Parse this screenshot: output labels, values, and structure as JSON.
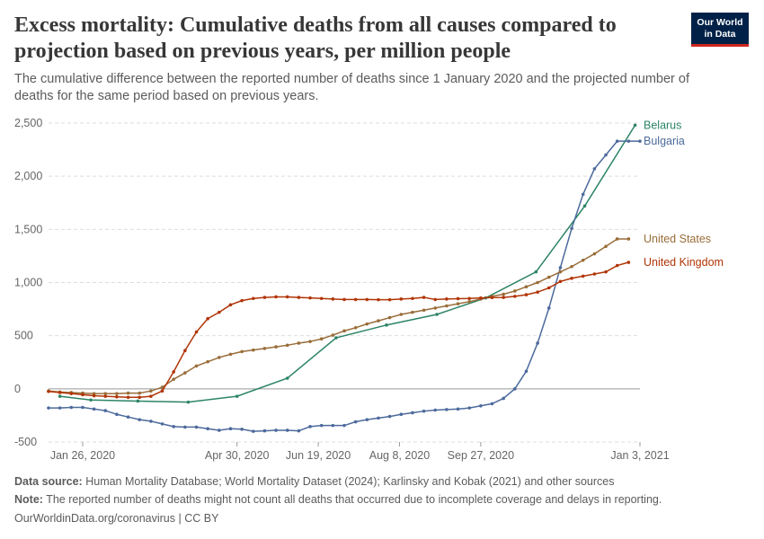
{
  "header": {
    "title": "Excess mortality: Cumulative deaths from all causes compared to projection based on previous years, per million people",
    "subtitle": "The cumulative difference between the reported number of deaths since 1 January 2020 and the projected number of deaths for the same period based on previous years.",
    "logo_line1": "Our World",
    "logo_line2": "in Data"
  },
  "footer": {
    "source_label": "Data source:",
    "source_text": "Human Mortality Database; World Mortality Dataset (2024); Karlinsky and Kobak (2021) and other sources",
    "note_label": "Note:",
    "note_text": "The reported number of deaths might not count all deaths that occurred due to incomplete coverage and delays in reporting.",
    "credit": "OurWorldinData.org/coronavirus | CC BY"
  },
  "colors": {
    "belarus": "#2c8465",
    "bulgaria": "#4c6a9c",
    "united_states": "#996d39",
    "united_kingdom": "#b13507",
    "grid": "#dddddd",
    "axis_text": "#666666"
  },
  "chart_data": {
    "type": "line",
    "xlabel": "",
    "ylabel": "",
    "x_range": [
      "2020-01-05",
      "2021-01-03"
    ],
    "ylim": [
      -500,
      2500
    ],
    "y_ticks": [
      -500,
      0,
      500,
      1000,
      1500,
      2000,
      2500
    ],
    "y_tick_labels": [
      "-500",
      "0",
      "500",
      "1,000",
      "1,500",
      "2,000",
      "2,500"
    ],
    "x_ticks": [
      "2020-01-26",
      "2020-04-30",
      "2020-06-19",
      "2020-08-08",
      "2020-09-27",
      "2021-01-03"
    ],
    "x_tick_labels": [
      "Jan 26, 2020",
      "Apr 30, 2020",
      "Jun 19, 2020",
      "Aug 8, 2020",
      "Sep 27, 2020",
      "Jan 3, 2021"
    ],
    "grid": "horizontal dashed",
    "legend": "labels at line ends (right)",
    "series": [
      {
        "name": "Belarus",
        "color": "#2c8465",
        "x": [
          "2020-01-12",
          "2020-01-31",
          "2020-02-29",
          "2020-03-31",
          "2020-04-30",
          "2020-05-31",
          "2020-06-30",
          "2020-07-31",
          "2020-08-31",
          "2020-09-30",
          "2020-10-31",
          "2020-11-30",
          "2020-12-31"
        ],
        "y": [
          -70,
          -105,
          -115,
          -125,
          -70,
          100,
          480,
          600,
          700,
          855,
          1100,
          1720,
          2480
        ]
      },
      {
        "name": "Bulgaria",
        "color": "#4c6a9c",
        "x": [
          "2020-01-05",
          "2020-01-12",
          "2020-01-19",
          "2020-01-26",
          "2020-02-02",
          "2020-02-09",
          "2020-02-16",
          "2020-02-23",
          "2020-03-01",
          "2020-03-08",
          "2020-03-15",
          "2020-03-22",
          "2020-03-29",
          "2020-04-05",
          "2020-04-12",
          "2020-04-19",
          "2020-04-26",
          "2020-05-03",
          "2020-05-10",
          "2020-05-17",
          "2020-05-24",
          "2020-05-31",
          "2020-06-07",
          "2020-06-14",
          "2020-06-21",
          "2020-06-28",
          "2020-07-05",
          "2020-07-12",
          "2020-07-19",
          "2020-07-26",
          "2020-08-02",
          "2020-08-09",
          "2020-08-16",
          "2020-08-23",
          "2020-08-30",
          "2020-09-06",
          "2020-09-13",
          "2020-09-20",
          "2020-09-27",
          "2020-10-04",
          "2020-10-11",
          "2020-10-18",
          "2020-10-25",
          "2020-11-01",
          "2020-11-08",
          "2020-11-15",
          "2020-11-22",
          "2020-11-29",
          "2020-12-06",
          "2020-12-13",
          "2020-12-20",
          "2020-12-27",
          "2021-01-03"
        ],
        "y": [
          -180,
          -180,
          -175,
          -175,
          -190,
          -205,
          -240,
          -265,
          -290,
          -305,
          -330,
          -355,
          -360,
          -360,
          -375,
          -390,
          -375,
          -380,
          -400,
          -395,
          -390,
          -390,
          -395,
          -355,
          -345,
          -345,
          -345,
          -310,
          -290,
          -275,
          -260,
          -240,
          -225,
          -210,
          -200,
          -195,
          -190,
          -180,
          -160,
          -140,
          -90,
          0,
          165,
          430,
          760,
          1140,
          1510,
          1830,
          2070,
          2200,
          2330,
          2330,
          2330
        ]
      },
      {
        "name": "United States",
        "color": "#996d39",
        "x": [
          "2020-01-05",
          "2020-01-12",
          "2020-01-19",
          "2020-01-26",
          "2020-02-02",
          "2020-02-09",
          "2020-02-16",
          "2020-02-23",
          "2020-03-01",
          "2020-03-08",
          "2020-03-15",
          "2020-03-22",
          "2020-03-29",
          "2020-04-05",
          "2020-04-12",
          "2020-04-19",
          "2020-04-26",
          "2020-05-03",
          "2020-05-10",
          "2020-05-17",
          "2020-05-24",
          "2020-05-31",
          "2020-06-07",
          "2020-06-14",
          "2020-06-21",
          "2020-06-28",
          "2020-07-05",
          "2020-07-12",
          "2020-07-19",
          "2020-07-26",
          "2020-08-02",
          "2020-08-09",
          "2020-08-16",
          "2020-08-23",
          "2020-08-30",
          "2020-09-06",
          "2020-09-13",
          "2020-09-20",
          "2020-09-27",
          "2020-10-04",
          "2020-10-11",
          "2020-10-18",
          "2020-10-25",
          "2020-11-01",
          "2020-11-08",
          "2020-11-15",
          "2020-11-22",
          "2020-11-29",
          "2020-12-06",
          "2020-12-13",
          "2020-12-20",
          "2020-12-27"
        ],
        "y": [
          -20,
          -30,
          -35,
          -40,
          -45,
          -45,
          -45,
          -40,
          -40,
          -20,
          15,
          90,
          150,
          215,
          255,
          295,
          325,
          350,
          365,
          380,
          395,
          410,
          430,
          445,
          470,
          505,
          545,
          575,
          610,
          640,
          670,
          700,
          720,
          740,
          760,
          780,
          800,
          820,
          845,
          870,
          890,
          920,
          960,
          1000,
          1050,
          1100,
          1150,
          1210,
          1270,
          1340,
          1410,
          1410
        ]
      },
      {
        "name": "United Kingdom",
        "color": "#b13507",
        "x": [
          "2020-01-05",
          "2020-01-12",
          "2020-01-19",
          "2020-01-26",
          "2020-02-02",
          "2020-02-09",
          "2020-02-16",
          "2020-02-23",
          "2020-03-01",
          "2020-03-08",
          "2020-03-15",
          "2020-03-22",
          "2020-03-29",
          "2020-04-05",
          "2020-04-12",
          "2020-04-19",
          "2020-04-26",
          "2020-05-03",
          "2020-05-10",
          "2020-05-17",
          "2020-05-24",
          "2020-05-31",
          "2020-06-07",
          "2020-06-14",
          "2020-06-21",
          "2020-06-28",
          "2020-07-05",
          "2020-07-12",
          "2020-07-19",
          "2020-07-26",
          "2020-08-02",
          "2020-08-09",
          "2020-08-16",
          "2020-08-23",
          "2020-08-30",
          "2020-09-06",
          "2020-09-13",
          "2020-09-20",
          "2020-09-27",
          "2020-10-04",
          "2020-10-11",
          "2020-10-18",
          "2020-10-25",
          "2020-11-01",
          "2020-11-08",
          "2020-11-15",
          "2020-11-22",
          "2020-11-29",
          "2020-12-06",
          "2020-12-13",
          "2020-12-20",
          "2020-12-27"
        ],
        "y": [
          -25,
          -35,
          -45,
          -55,
          -65,
          -70,
          -75,
          -80,
          -80,
          -70,
          -20,
          160,
          360,
          535,
          660,
          720,
          790,
          830,
          850,
          860,
          865,
          865,
          860,
          855,
          850,
          845,
          840,
          840,
          840,
          838,
          838,
          845,
          850,
          860,
          840,
          845,
          848,
          850,
          855,
          858,
          860,
          870,
          885,
          910,
          950,
          1010,
          1040,
          1060,
          1080,
          1100,
          1160,
          1190
        ]
      }
    ]
  }
}
